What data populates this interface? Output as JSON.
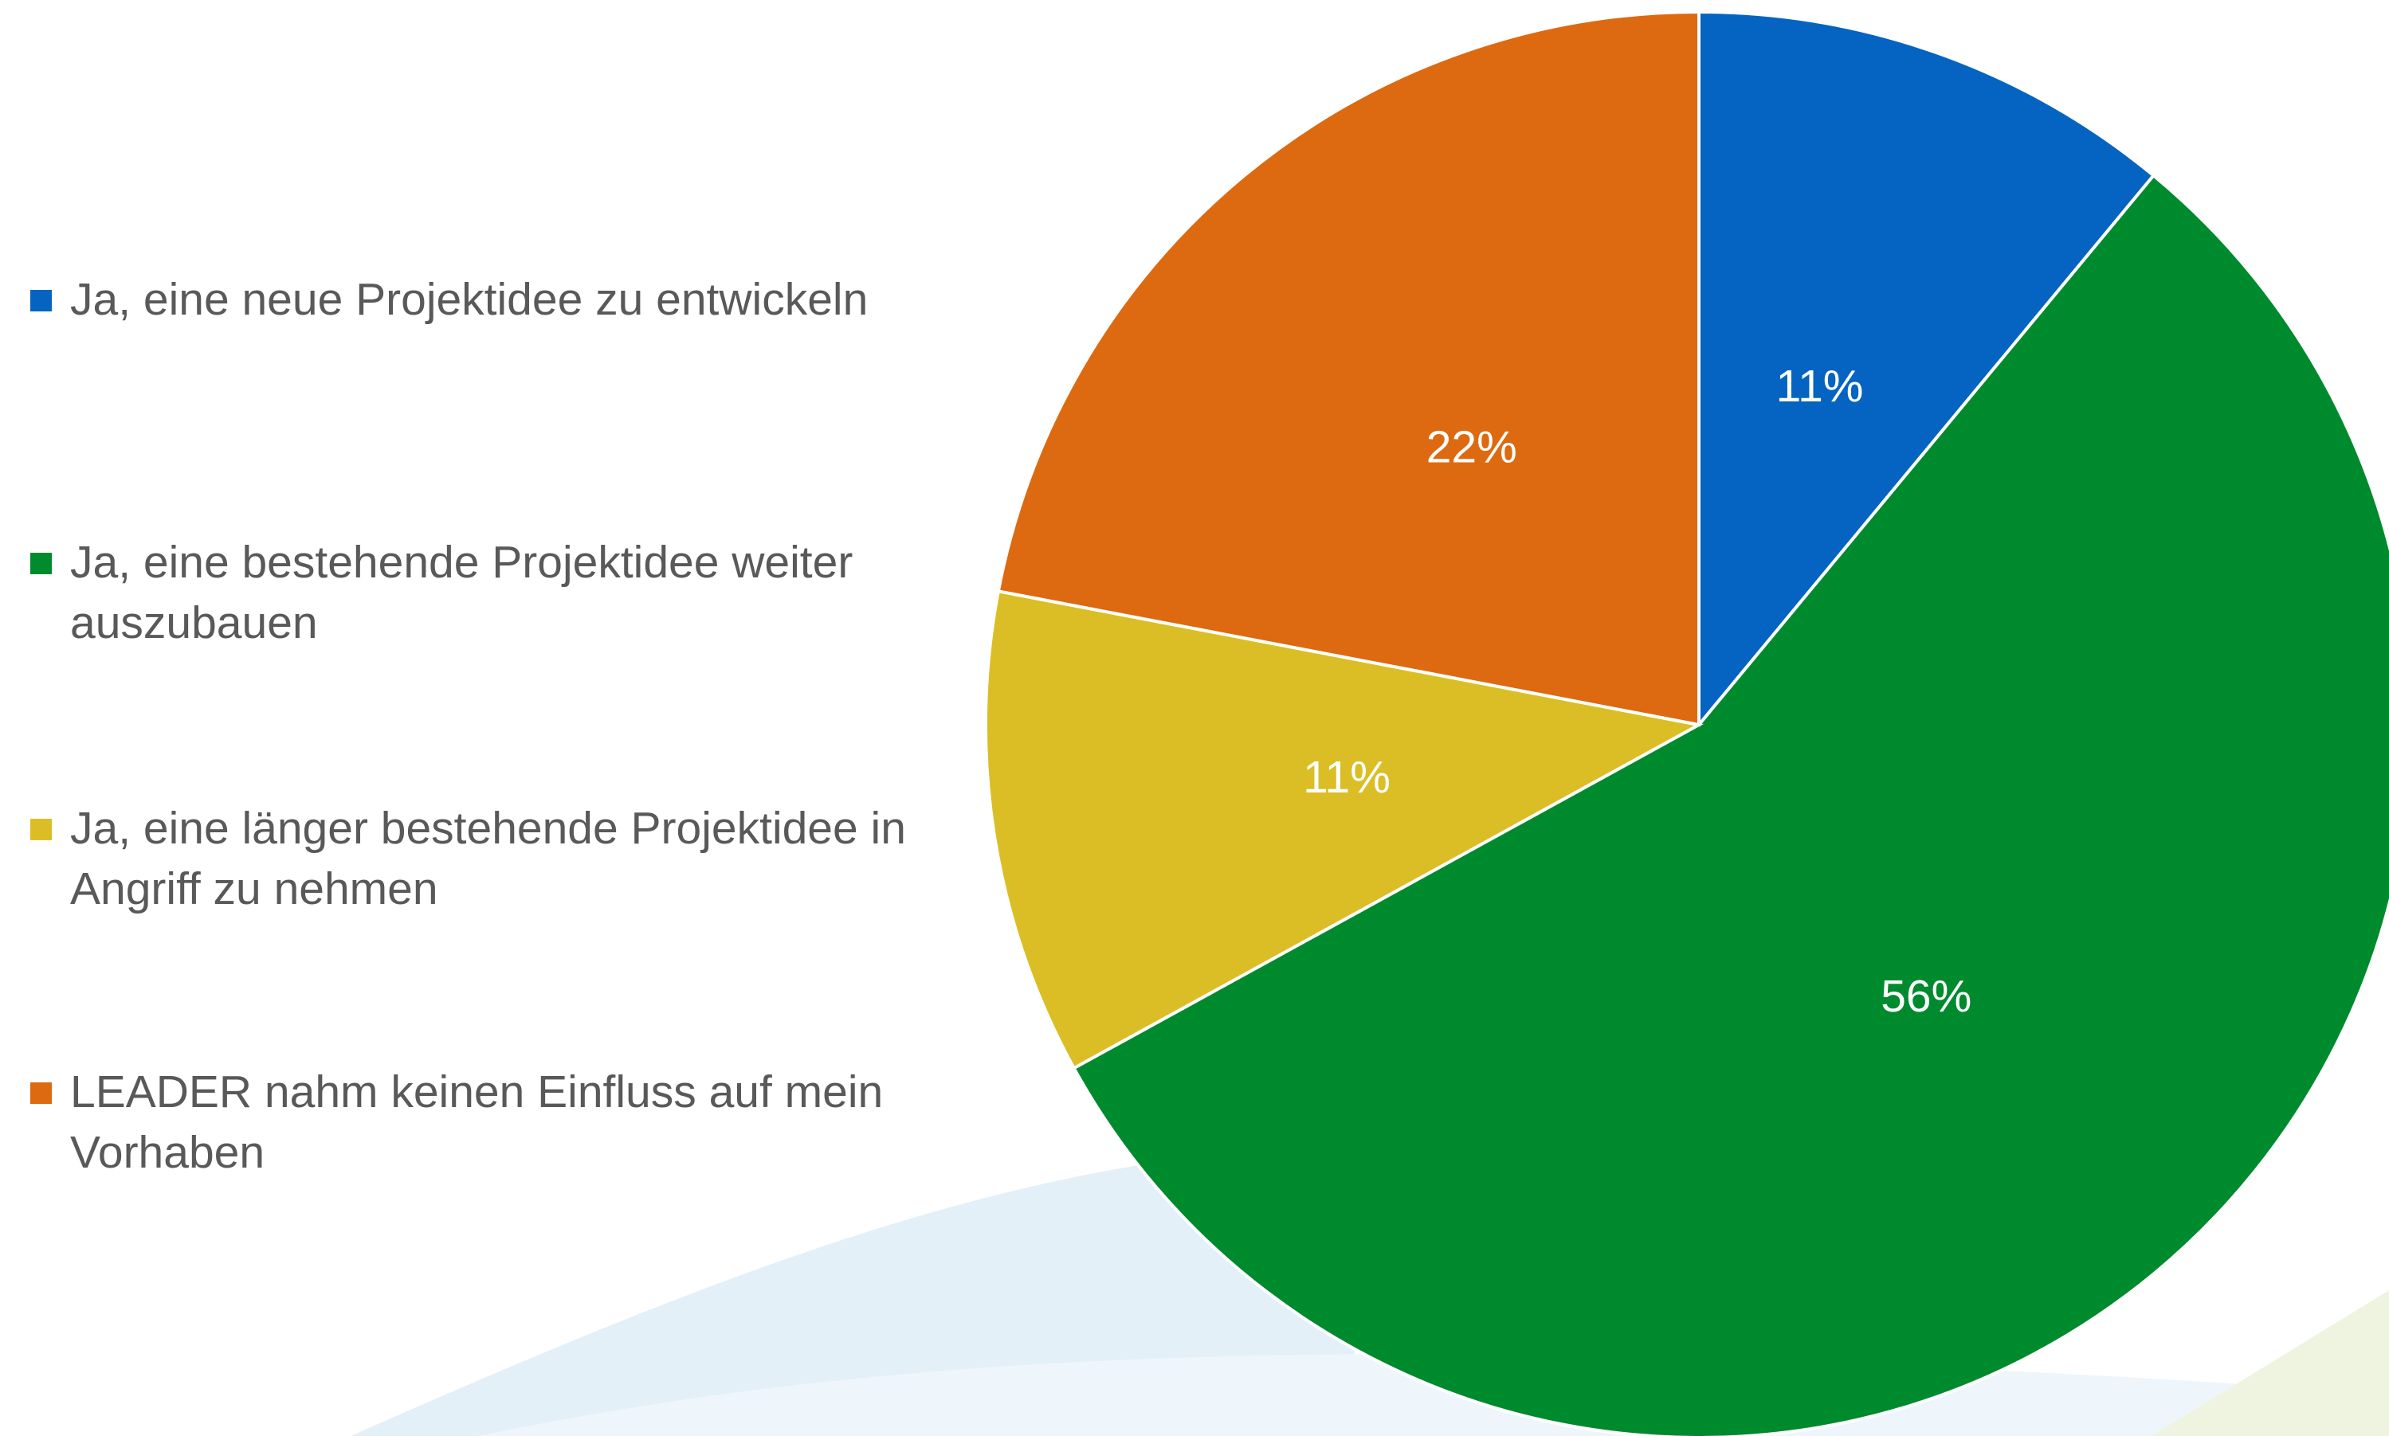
{
  "chart_data": {
    "type": "pie",
    "categories": [
      "Ja, eine neue Projektidee zu entwickeln",
      "Ja, eine bestehende Projektidee weiter auszubauen",
      "Ja, eine länger bestehende Projektidee in Angriff zu nehmen",
      "LEADER nahm keinen Einfluss auf mein Vorhaben"
    ],
    "values": [
      11,
      56,
      11,
      22
    ],
    "value_labels": [
      "11%",
      "56%",
      "11%",
      "22%"
    ],
    "colors": [
      "#0563c1",
      "#008a2e",
      "#dbbe25",
      "#dd6a10"
    ],
    "legend": "left"
  }
}
